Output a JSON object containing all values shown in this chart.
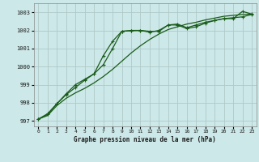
{
  "title": "Graphe pression niveau de la mer (hPa)",
  "background_color": "#cce8e8",
  "grid_color": "#b0c8c8",
  "line_color": "#1a5c1a",
  "xlim": [
    -0.5,
    23.5
  ],
  "ylim": [
    996.7,
    1003.5
  ],
  "yticks": [
    997,
    998,
    999,
    1000,
    1001,
    1002,
    1003
  ],
  "xticks": [
    0,
    1,
    2,
    3,
    4,
    5,
    6,
    7,
    8,
    9,
    10,
    11,
    12,
    13,
    14,
    15,
    16,
    17,
    18,
    19,
    20,
    21,
    22,
    23
  ],
  "series1_y": [
    997.1,
    997.35,
    997.95,
    998.5,
    999.0,
    999.3,
    999.6,
    1000.6,
    1001.4,
    1001.95,
    1001.98,
    1002.0,
    1001.9,
    1002.0,
    1002.3,
    1002.35,
    1002.15,
    1002.3,
    1002.45,
    1002.55,
    1002.65,
    1002.65,
    1003.05,
    1002.9
  ],
  "series2_y": [
    997.1,
    997.3,
    997.85,
    998.25,
    998.55,
    998.8,
    999.1,
    999.45,
    999.85,
    1000.3,
    1000.75,
    1001.15,
    1001.5,
    1001.8,
    1002.05,
    1002.2,
    1002.35,
    1002.45,
    1002.58,
    1002.68,
    1002.78,
    1002.83,
    1002.88,
    1002.9
  ],
  "series3_y": [
    997.1,
    997.4,
    997.95,
    998.45,
    998.85,
    999.25,
    999.6,
    1000.1,
    1001.0,
    1001.95,
    1002.0,
    1002.0,
    1001.95,
    1001.95,
    1002.3,
    1002.3,
    1002.1,
    1002.2,
    1002.4,
    1002.55,
    1002.65,
    1002.7,
    1002.75,
    1002.88
  ]
}
